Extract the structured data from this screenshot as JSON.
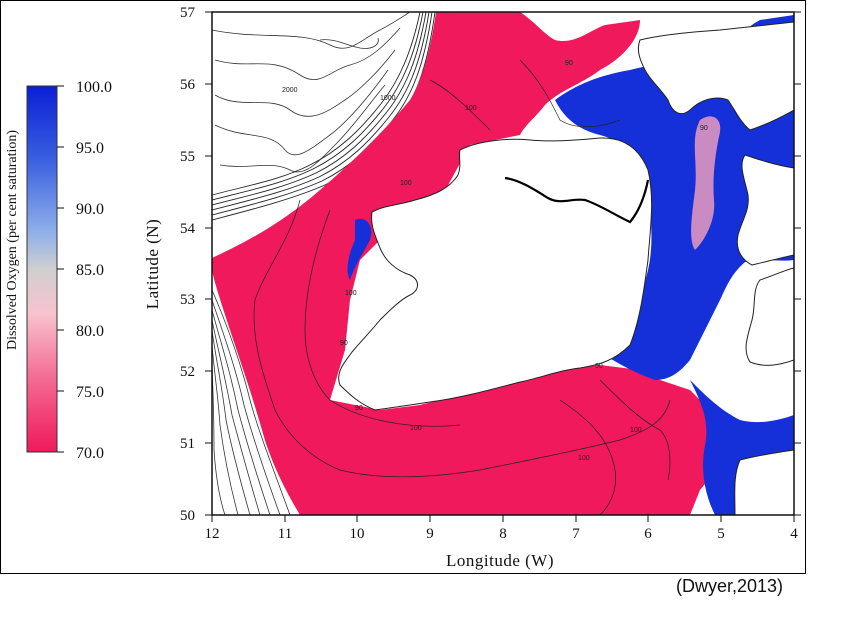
{
  "map": {
    "y_label": "Latitude (N)",
    "x_label": "Longitude (W)",
    "x_ticks": [
      "12",
      "11",
      "10",
      "9",
      "8",
      "7",
      "6",
      "5",
      "4"
    ],
    "y_ticks": [
      "57",
      "56",
      "55",
      "54",
      "53",
      "52",
      "51",
      "50"
    ],
    "contour_labels": [
      "100",
      "100",
      "100",
      "100",
      "100",
      "90",
      "90",
      "90",
      "90",
      "90",
      "1000",
      "2000",
      "100"
    ]
  },
  "colorbar": {
    "title": "Dissolved Oxygen (per cent saturation)",
    "labels": [
      "100.0",
      "95.0",
      "90.0",
      "85.0",
      "80.0",
      "75.0",
      "70.0"
    ],
    "colors": {
      "high": "#0a1fd6",
      "mid_high": "#5e8ee0",
      "mid": "#c7c7c7",
      "mid_low": "#f5b8c8",
      "low": "#f0195c"
    }
  },
  "citation": "(Dwyer,2013)"
}
